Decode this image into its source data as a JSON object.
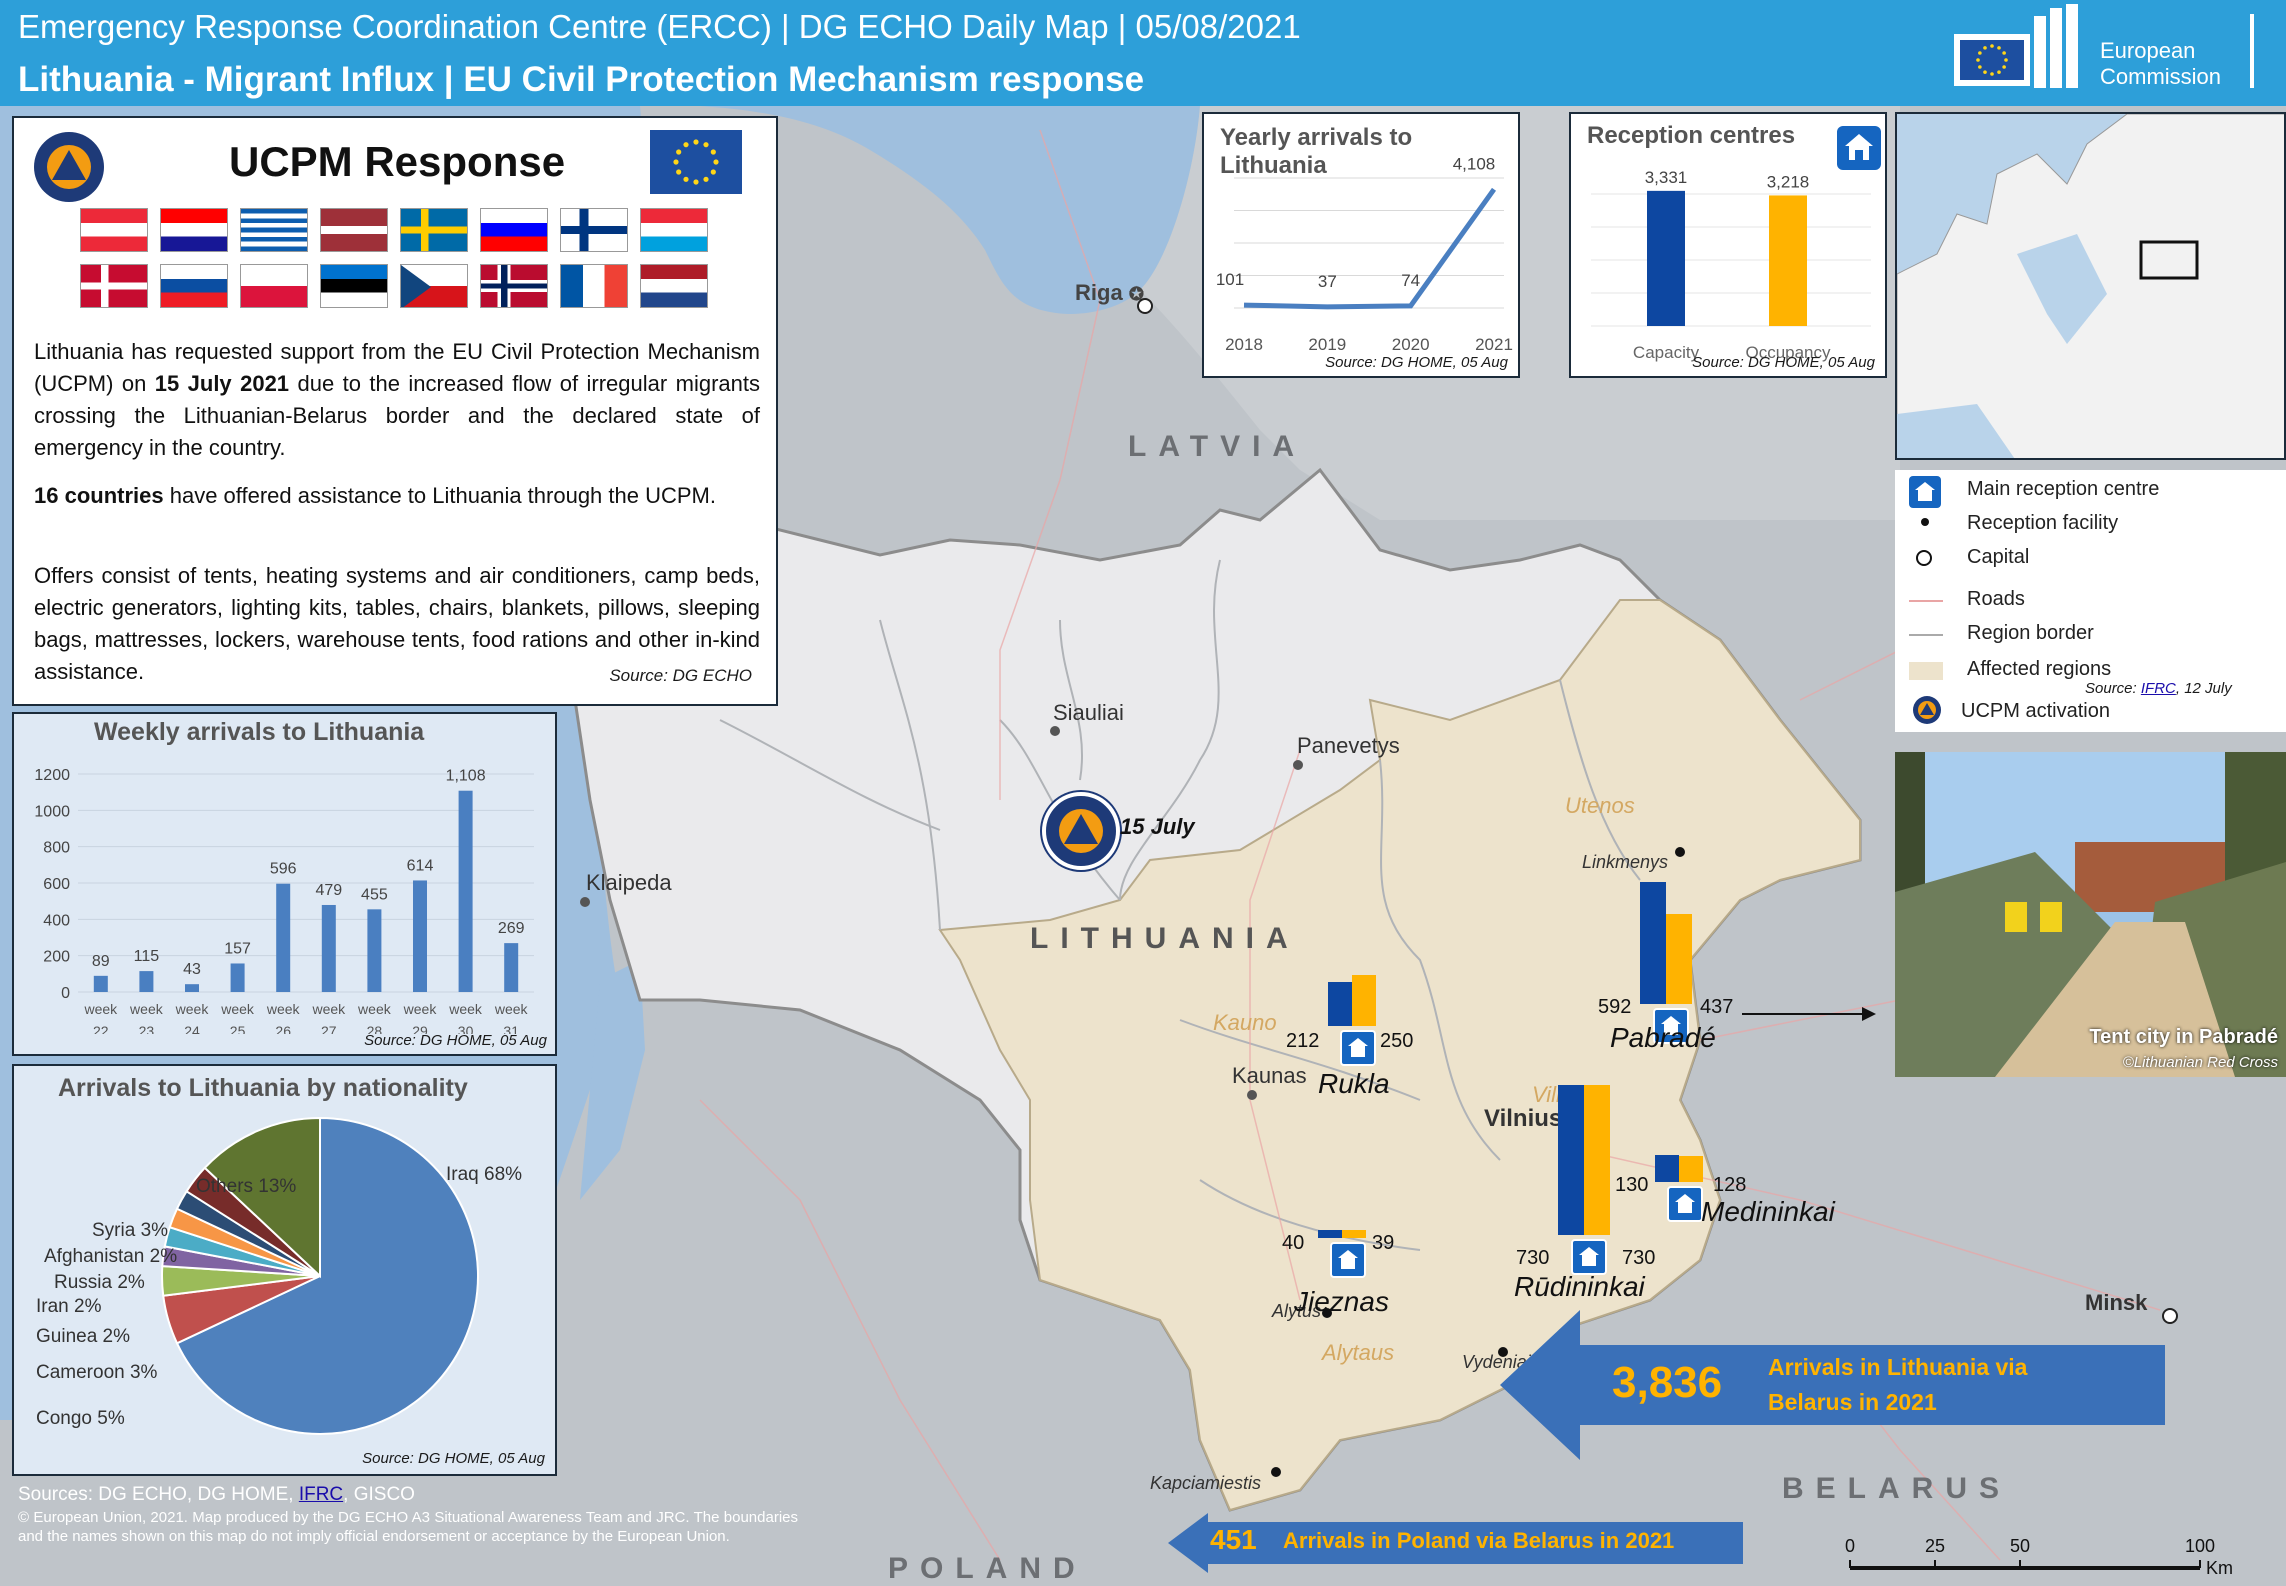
{
  "header": {
    "line1": "Emergency Response Coordination Centre (ERCC) | DG ECHO Daily Map | 05/08/2021",
    "line2": "Lithuania - Migrant Influx | EU Civil Protection Mechanism response",
    "logo_text_1": "European",
    "logo_text_2": "Commission"
  },
  "ucpm": {
    "title": "UCPM Response",
    "p1_a": "Lithuania has requested support from the EU Civil Protection Mechanism (UCPM) on ",
    "p1_date": "15 July 2021",
    "p1_b": " due to the increased flow of irregular migrants crossing the Lithuanian-Belarus border and the declared state of emergency in the country.",
    "p2_bold": "16 countries",
    "p2_rest": " have offered assistance to Lithuania through the UCPM.",
    "p3": "Offers consist of tents, heating systems and air conditioners, camp beds, electric generators, lighting kits, tables, chairs, blankets, pillows, sleeping bags, mattresses, lockers, warehouse tents, food rations and other in-kind assistance.",
    "source": "Source: DG ECHO",
    "flags": [
      "austria",
      "croatia",
      "greece",
      "latvia",
      "sweden",
      "slovenia",
      "finland",
      "luxembourg",
      "denmark",
      "slovakia",
      "poland",
      "estonia",
      "czechia",
      "norway",
      "france",
      "netherlands"
    ]
  },
  "colors": {
    "accent": "#2d9fd9",
    "capacity": "#0d47a1",
    "occupancy": "#ffb300",
    "series": "#4a7fc1",
    "affected": "#ede3cc",
    "water": "#9fbfde"
  },
  "yearly": {
    "title": "Yearly arrivals to Lithuania",
    "source": "Source: DG HOME, 05 Aug",
    "chart_data": {
      "type": "line",
      "categories": [
        "2018",
        "2019",
        "2020",
        "2021"
      ],
      "values": [
        101,
        37,
        74,
        4108
      ],
      "title": "Yearly arrivals to Lithuania",
      "ylim": [
        0,
        4500
      ]
    }
  },
  "reception": {
    "title": "Reception centres",
    "source": "Source: DG HOME, 05 Aug",
    "chart_data": {
      "type": "bar",
      "categories": [
        "Capacity",
        "Occupancy"
      ],
      "values": [
        3331,
        3218
      ],
      "value_labels": [
        "3,331",
        "3,218"
      ],
      "title": "Reception centres",
      "ylim": [
        0,
        3500
      ]
    }
  },
  "weekly": {
    "title": "Weekly arrivals to Lithuania",
    "source": "Source: DG HOME, 05 Aug",
    "chart_data": {
      "type": "bar",
      "categories": [
        "22",
        "23",
        "24",
        "25",
        "26",
        "27",
        "28",
        "29",
        "30",
        "31"
      ],
      "week_label": "week",
      "values": [
        89,
        115,
        43,
        157,
        596,
        479,
        455,
        614,
        1108,
        269
      ],
      "value_labels": [
        "89",
        "115",
        "43",
        "157",
        "596",
        "479",
        "455",
        "614",
        "1,108",
        "269"
      ],
      "yticks": [
        "0",
        "200",
        "400",
        "600",
        "800",
        "1000",
        "1200"
      ],
      "ylim": [
        0,
        1200
      ],
      "title": "Weekly arrivals to Lithuania"
    }
  },
  "nationality": {
    "title": "Arrivals to Lithuania by nationality",
    "source": "Source: DG HOME, 05 Aug",
    "chart_data": {
      "type": "pie",
      "title": "Arrivals to Lithuania by nationality",
      "slices": [
        {
          "label": "Iraq 68%",
          "value": 68,
          "color": "#4f81bd"
        },
        {
          "label": "Congo 5%",
          "value": 5,
          "color": "#c0504d"
        },
        {
          "label": "Cameroon 3%",
          "value": 3,
          "color": "#9bbb59"
        },
        {
          "label": "Guinea 2%",
          "value": 2,
          "color": "#8064a2"
        },
        {
          "label": "Iran 2%",
          "value": 2,
          "color": "#4bacc6"
        },
        {
          "label": "Russia 2%",
          "value": 2,
          "color": "#f79646"
        },
        {
          "label": "Afghanistan 2%",
          "value": 2,
          "color": "#2c4d75"
        },
        {
          "label": "Syria 3%",
          "value": 3,
          "color": "#772c2a"
        },
        {
          "label": "Others 13%",
          "value": 13,
          "color": "#5f7530"
        }
      ]
    }
  },
  "legend": {
    "items": [
      "Main reception centre",
      "Reception facility",
      "Capital",
      "Roads",
      "Region border",
      "Affected regions",
      "UCPM activation"
    ],
    "source_prefix": "Source: ",
    "source_link": "IFRC",
    "source_suffix": ", 12 July"
  },
  "photo": {
    "caption": "Tent city in Pabradé",
    "credit": "©Lithuanian Red Cross"
  },
  "map": {
    "countries": {
      "latvia": "LATVIA",
      "lithuania": "LITHUANIA",
      "belarus": "BELARUS",
      "poland": "POLAND"
    },
    "cities": {
      "riga": "Riga",
      "siauliai": "Siauliai",
      "panevetys": "Panevetys",
      "klaipeda": "Klaipeda",
      "kaunas": "Kaunas",
      "vilnius": "Vilnius",
      "minsk": "Minsk",
      "linkmenys": "Linkmenys",
      "alytus": "Alytus",
      "vydeniai": "Vydeniai",
      "kapciamiestis": "Kapciamiestis"
    },
    "regions": {
      "utenos": "Utenos",
      "kauno": "Kauno",
      "vilniaus": "Vilniaus",
      "alytaus": "Alytaus"
    },
    "activation": "15 July",
    "centres": [
      {
        "name": "Rukla",
        "capacity": 212,
        "occupancy": 250
      },
      {
        "name": "Pabradé",
        "capacity": 592,
        "occupancy": 437
      },
      {
        "name": "Medininkai",
        "capacity": 130,
        "occupancy": 128
      },
      {
        "name": "Jieznas",
        "capacity": 40,
        "occupancy": 39
      },
      {
        "name": "Rūdininkai",
        "capacity": 730,
        "occupancy": 730
      }
    ]
  },
  "arrows": {
    "lithuania_value": "3,836",
    "lithuania_text_1": "Arrivals in Lithuania via",
    "lithuania_text_2": "Belarus in 2021",
    "poland_value": "451",
    "poland_text": "Arrivals in Poland  via Belarus in 2021"
  },
  "footer": {
    "sources_prefix": "Sources: DG ECHO, DG HOME, ",
    "sources_link": "IFRC",
    "sources_suffix": ", GISCO",
    "disclaimer": "© European Union, 2021. Map produced by the DG ECHO A3 Situational Awareness Team and JRC. The boundaries and the names shown on this map do not imply official endorsement or acceptance by the European Union."
  },
  "scale": {
    "ticks": [
      "0",
      "25",
      "50",
      "100"
    ],
    "unit": "Km"
  }
}
